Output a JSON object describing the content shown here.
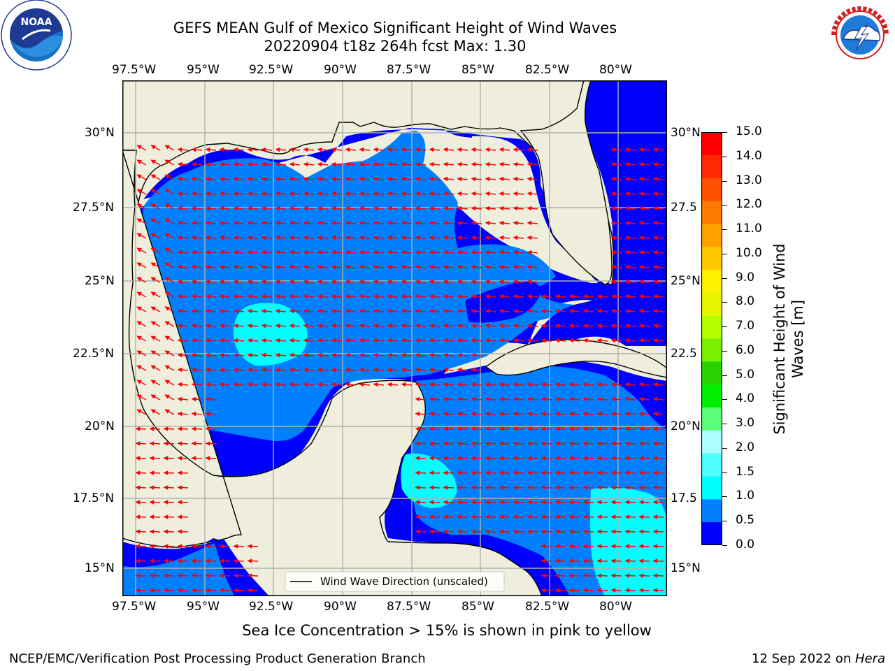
{
  "header": {
    "title_line1": "GEFS MEAN Gulf of Mexico Significant Height of Wind Waves",
    "title_line2": "20220904 t18z 264h fcst   Max: 1.30"
  },
  "logos": {
    "noaa_text": "NOAA",
    "noaa_ring_text": "NATIONAL OCEANIC AND ATMOSPHERIC ADMINISTRATION · U.S. DEPARTMENT OF COMMERCE",
    "nws_ring_text": "NATIONAL WEATHER SERVICE"
  },
  "map": {
    "lon_labels": [
      "97.5°W",
      "95°W",
      "92.5°W",
      "90°W",
      "87.5°W",
      "85°W",
      "82.5°W",
      "80°W"
    ],
    "lat_labels_left": [
      "30°N",
      "27.5°N",
      "25°N",
      "22.5°N",
      "20°N",
      "17.5°N",
      "15°N"
    ],
    "lat_labels_right": [
      "30°N",
      "27.5",
      "25°N",
      "22.5",
      "20°N",
      "17.5",
      "15°N"
    ],
    "legend_label": "Wind Wave Direction (unscaled)",
    "colors": {
      "land": "#efeedc",
      "grid": "#b0b0b0",
      "arrow": "#ff0000",
      "wave_0_0_5": "#0000ff",
      "wave_0_5_1": "#0080ff",
      "wave_1_1_5": "#00ffff"
    }
  },
  "colorbar": {
    "ticks": [
      "15.0",
      "14.0",
      "13.0",
      "12.0",
      "11.0",
      "10.0",
      "9.0",
      "8.0",
      "7.0",
      "6.0",
      "5.0",
      "4.0",
      "3.0",
      "2.0",
      "1.5",
      "1.0",
      "0.5",
      "0.0"
    ],
    "colors_top_to_bottom": [
      "#ff0000",
      "#ff2800",
      "#ff5000",
      "#ff7800",
      "#ffa000",
      "#ffc800",
      "#fff000",
      "#e6f500",
      "#b4ff00",
      "#78f000",
      "#28d200",
      "#00f000",
      "#5aff78",
      "#aaffff",
      "#50ffff",
      "#00ffff",
      "#0080ff",
      "#0000ff"
    ],
    "label_line1": "Significant Height of Wind",
    "label_line2": "Waves [m]"
  },
  "footer": {
    "sea_ice_note": "Sea Ice Concentration > 15% is shown in pink to yellow",
    "credit_left": "NCEP/EMC/Verification Post Processing Product Generation Branch",
    "credit_right_date": "12 Sep 2022 on ",
    "credit_right_host": "Hera"
  }
}
